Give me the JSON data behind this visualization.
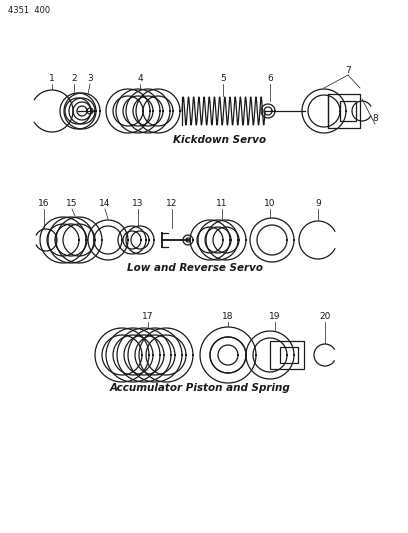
{
  "title": "4351  400",
  "section1_label": "Kickdown Servo",
  "section2_label": "Low and Reverse Servo",
  "section3_label": "Accumulator Piston and Spring",
  "bg_color": "#ffffff",
  "line_color": "#1a1a1a",
  "fig_width": 4.08,
  "fig_height": 5.33,
  "dpi": 100
}
